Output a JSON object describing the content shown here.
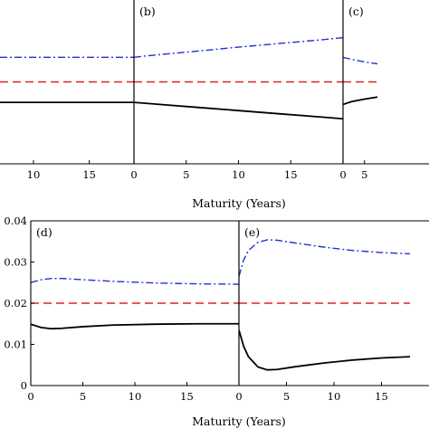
{
  "chart_data": [
    {
      "type": "line",
      "panel_label": "",
      "x_ticks": [
        10,
        15
      ],
      "y_ticks": [],
      "xlim": [
        7.0,
        19.0
      ],
      "ylim": [
        0,
        0.04
      ],
      "series": [
        {
          "style": "dashdot",
          "color": "#2233cc",
          "x": [
            7,
            19
          ],
          "y": [
            0.026,
            0.026
          ]
        },
        {
          "style": "dashed",
          "color": "#dd2222",
          "x": [
            7,
            19
          ],
          "y": [
            0.02,
            0.02
          ]
        },
        {
          "style": "solid",
          "color": "#000000",
          "x": [
            7,
            19
          ],
          "y": [
            0.015,
            0.015
          ]
        }
      ]
    },
    {
      "type": "line",
      "panel_label": "(b)",
      "x_ticks": [
        0,
        5,
        10,
        15
      ],
      "y_ticks": [],
      "xlim": [
        0,
        20
      ],
      "ylim": [
        0,
        0.04
      ],
      "series": [
        {
          "style": "dashdot",
          "color": "#2233cc",
          "x": [
            0,
            1,
            3,
            6,
            10,
            14,
            18,
            20
          ],
          "y": [
            0.026,
            0.0263,
            0.0268,
            0.0275,
            0.0285,
            0.0294,
            0.0303,
            0.0308
          ]
        },
        {
          "style": "dashed",
          "color": "#dd2222",
          "x": [
            0,
            20
          ],
          "y": [
            0.02,
            0.02
          ]
        },
        {
          "style": "solid",
          "color": "#000000",
          "x": [
            0,
            1,
            3,
            6,
            10,
            14,
            18,
            20
          ],
          "y": [
            0.015,
            0.0148,
            0.0144,
            0.0138,
            0.013,
            0.0122,
            0.0114,
            0.011
          ]
        }
      ]
    },
    {
      "type": "line",
      "panel_label": "(c)",
      "x_ticks": [
        0,
        5
      ],
      "y_ticks": [],
      "xlim": [
        0,
        20
      ],
      "ylim": [
        0,
        0.04
      ],
      "series": [
        {
          "style": "dashdot",
          "color": "#2233cc",
          "x": [
            0,
            2,
            5,
            8
          ],
          "y": [
            0.026,
            0.0255,
            0.0249,
            0.0244
          ]
        },
        {
          "style": "dashed",
          "color": "#dd2222",
          "x": [
            0,
            8
          ],
          "y": [
            0.02,
            0.02
          ]
        },
        {
          "style": "solid",
          "color": "#000000",
          "x": [
            0,
            2,
            5,
            8
          ],
          "y": [
            0.0145,
            0.0152,
            0.0158,
            0.0163
          ]
        }
      ]
    },
    {
      "type": "line",
      "panel_label": "(d)",
      "x_ticks": [
        0,
        5,
        10,
        15
      ],
      "y_ticks": [
        "0",
        "0.01",
        "0.02",
        "0.03",
        "0.04"
      ],
      "xlim": [
        0,
        20
      ],
      "ylim": [
        0,
        0.04
      ],
      "series": [
        {
          "style": "dashdot",
          "color": "#2233cc",
          "x": [
            0,
            1,
            2,
            3,
            5,
            8,
            12,
            16,
            20
          ],
          "y": [
            0.025,
            0.0257,
            0.026,
            0.026,
            0.0257,
            0.0253,
            0.0249,
            0.0247,
            0.0246
          ]
        },
        {
          "style": "dashed",
          "color": "#dd2222",
          "x": [
            0,
            20
          ],
          "y": [
            0.02,
            0.02
          ]
        },
        {
          "style": "solid",
          "color": "#000000",
          "x": [
            0,
            1,
            2,
            3,
            5,
            8,
            12,
            16,
            20
          ],
          "y": [
            0.0149,
            0.0141,
            0.0138,
            0.0139,
            0.0143,
            0.0147,
            0.0149,
            0.015,
            0.015
          ]
        }
      ]
    },
    {
      "type": "line",
      "panel_label": "(e)",
      "x_ticks": [
        0,
        5,
        10,
        15
      ],
      "y_ticks": [],
      "xlim": [
        0,
        20
      ],
      "ylim": [
        0,
        0.04
      ],
      "series": [
        {
          "style": "dashdot",
          "color": "#2233cc",
          "x": [
            0,
            0.5,
            1,
            2,
            3,
            4,
            6,
            9,
            12,
            15,
            18
          ],
          "y": [
            0.0265,
            0.0305,
            0.0328,
            0.0348,
            0.0354,
            0.0353,
            0.0346,
            0.0336,
            0.0328,
            0.0323,
            0.032
          ]
        },
        {
          "style": "dashed",
          "color": "#dd2222",
          "x": [
            0,
            18
          ],
          "y": [
            0.02,
            0.02
          ]
        },
        {
          "style": "solid",
          "color": "#000000",
          "x": [
            0,
            0.5,
            1,
            2,
            3,
            4,
            6,
            9,
            12,
            15,
            18
          ],
          "y": [
            0.0135,
            0.0095,
            0.007,
            0.0045,
            0.0038,
            0.0039,
            0.0046,
            0.0055,
            0.0062,
            0.0067,
            0.007
          ]
        }
      ]
    }
  ],
  "xlabel_top": "Maturity (Years)",
  "xlabel_bottom": "Maturity (Years)"
}
